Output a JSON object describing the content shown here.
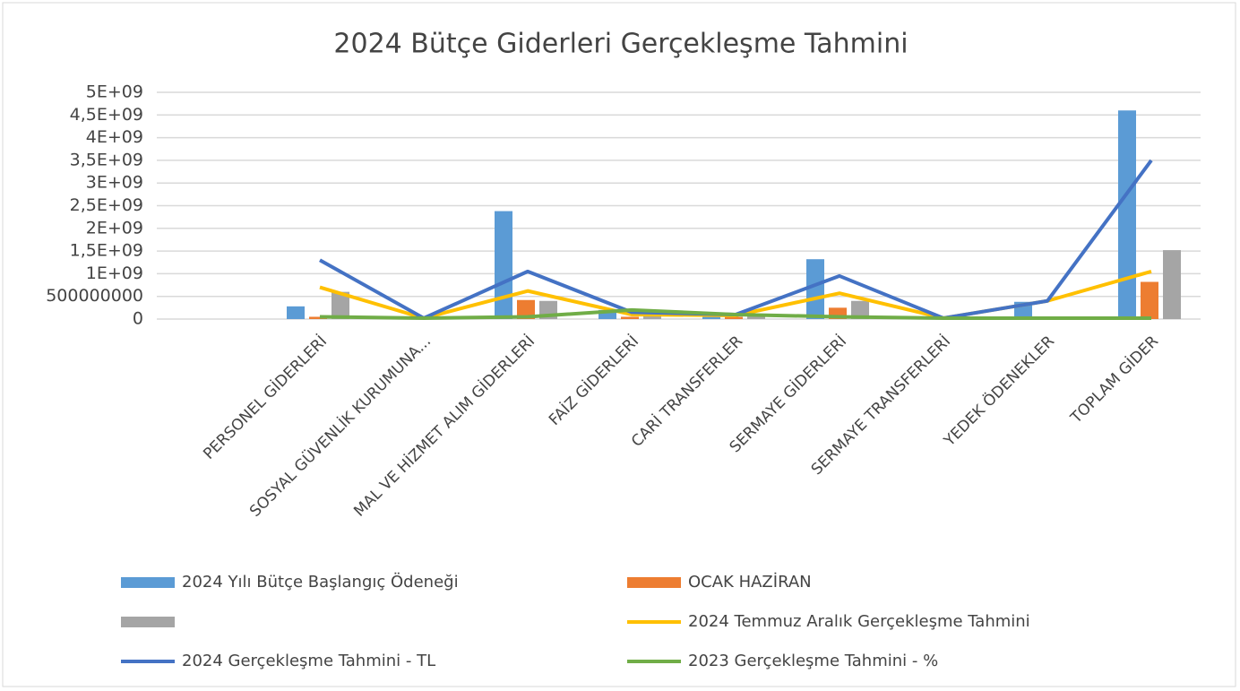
{
  "chart_data": {
    "type": "bar",
    "title": "2024 Bütçe Giderleri Gerçekleşme Tahmini",
    "categories": [
      "PERSONEL GİDERLERİ",
      "SOSYAL GÜVENLİK KURUMUNA...",
      "MAL VE HİZMET ALIM GİDERLERİ",
      "FAİZ GİDERLERİ",
      "CARİ TRANSFERLER",
      "SERMAYE GİDERLERİ",
      "SERMAYE TRANSFERLERİ",
      "YEDEK ÖDENEKLER",
      "TOPLAM GİDER"
    ],
    "series": [
      {
        "name": "2024 Yılı Bütçe Başlangıç Ödeneği",
        "type": "bar",
        "color": "#5b9bd5",
        "values": [
          280000000,
          0,
          2380000000,
          200000000,
          100000000,
          1320000000,
          0,
          380000000,
          4600000000
        ]
      },
      {
        "name": "OCAK HAZİRAN",
        "type": "bar",
        "color": "#ed7d31",
        "values": [
          50000000,
          0,
          420000000,
          50000000,
          50000000,
          250000000,
          0,
          0,
          820000000
        ]
      },
      {
        "type": "bar",
        "color": "#a5a5a5",
        "values": [
          600000000,
          0,
          400000000,
          100000000,
          100000000,
          400000000,
          0,
          50000000,
          1520000000
        ]
      },
      {
        "name": "2024 Temmuz Aralık Gerçekleşme Tahmini",
        "type": "line",
        "color": "#ffc000",
        "values": [
          700000000,
          20000000,
          620000000,
          100000000,
          80000000,
          570000000,
          20000000,
          400000000,
          1050000000
        ]
      },
      {
        "name": "2024 Gerçekleşme Tahmini - TL",
        "type": "line",
        "color": "#4472c4",
        "values": [
          1300000000,
          20000000,
          1050000000,
          150000000,
          100000000,
          950000000,
          20000000,
          400000000,
          3500000000
        ]
      },
      {
        "name": "2023 Gerçekleşme Tahmini  - %",
        "type": "line",
        "color": "#70ad47",
        "values": [
          50000000,
          20000000,
          50000000,
          200000000,
          100000000,
          50000000,
          20000000,
          20000000,
          20000000
        ]
      }
    ],
    "ylim": [
      0,
      5000000000
    ],
    "yticks": [
      0,
      500000000,
      {
        "value": 1000000000,
        "label": "1E+09"
      },
      {
        "value": 1500000000,
        "label": "1,5E+09"
      },
      {
        "value": 2000000000,
        "label": "2E+09"
      },
      {
        "value": 2500000000,
        "label": "2,5E+09"
      },
      {
        "value": 3000000000,
        "label": "3E+09"
      },
      {
        "value": 3500000000,
        "label": "3,5E+09"
      },
      {
        "value": 4000000000,
        "label": "4E+09"
      },
      {
        "value": 4500000000,
        "label": "4,5E+09"
      },
      {
        "value": 5000000000,
        "label": "5E+09"
      }
    ],
    "grid": true,
    "legend": "bottom"
  }
}
